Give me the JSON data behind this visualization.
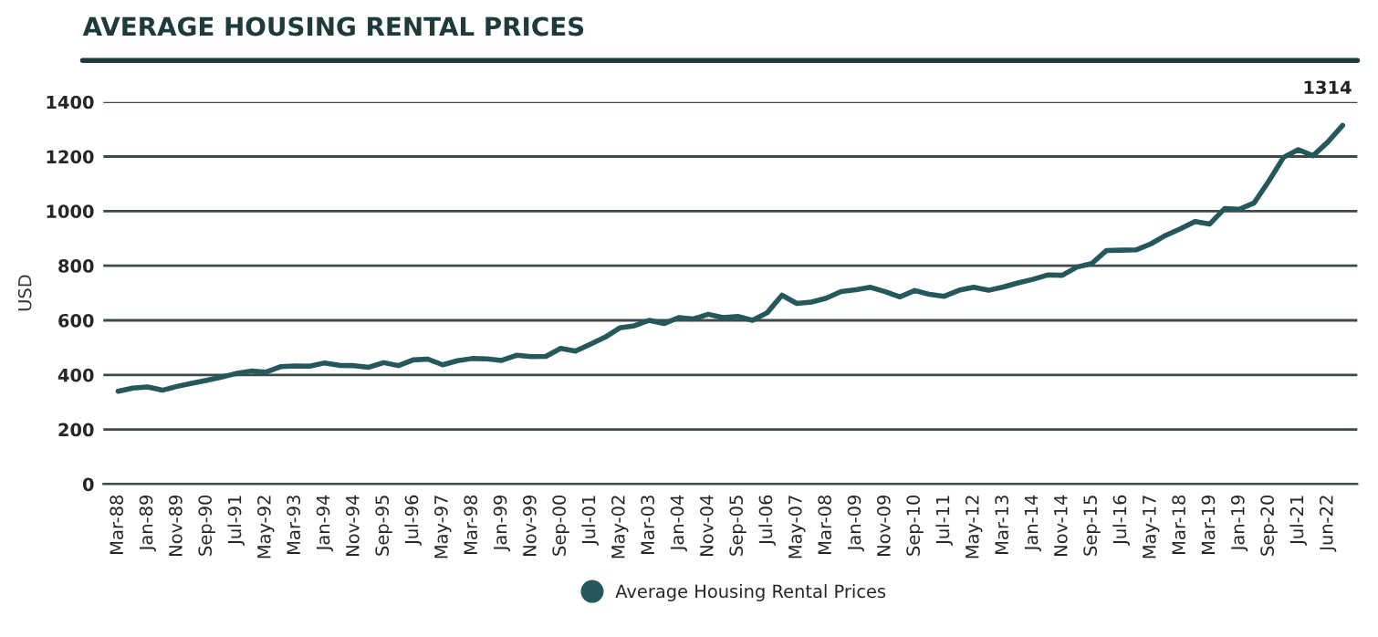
{
  "chart_data": {
    "type": "line",
    "title": "AVERAGE HOUSING RENTAL PRICES",
    "ylabel": "USD",
    "categories": [
      "Mar-88",
      null,
      "Jan-89",
      null,
      "Nov-89",
      null,
      "Sep-90",
      null,
      "Jul-91",
      null,
      "May-92",
      null,
      "Mar-93",
      null,
      "Jan-94",
      null,
      "Nov-94",
      null,
      "Sep-95",
      null,
      "Jul-96",
      null,
      "May-97",
      null,
      "Mar-98",
      null,
      "Jan-99",
      null,
      "Nov-99",
      null,
      "Sep-00",
      null,
      "Jul-01",
      null,
      "May-02",
      null,
      "Mar-03",
      null,
      "Jan-04",
      null,
      "Nov-04",
      null,
      "Sep-05",
      null,
      "Jul-06",
      null,
      "May-07",
      null,
      "Mar-08",
      null,
      "Jan-09",
      null,
      "Nov-09",
      null,
      "Sep-10",
      null,
      "Jul-11",
      null,
      "May-12",
      null,
      "Mar-13",
      null,
      "Jan-14",
      null,
      "Nov-14",
      null,
      "Sep-15",
      null,
      "Jul-16",
      null,
      "May-17",
      null,
      "Mar-18",
      null,
      "Mar-19",
      null,
      "Jan-19",
      null,
      "Sep-20",
      null,
      "Jul-21",
      null,
      "Jun-22",
      null
    ],
    "series": [
      {
        "name": "Average Housing Rental Prices",
        "color": "#24585a",
        "values": [
          340,
          352,
          356,
          344,
          358,
          369,
          380,
          392,
          405,
          414,
          410,
          430,
          433,
          432,
          444,
          435,
          434,
          428,
          445,
          434,
          455,
          458,
          437,
          452,
          460,
          459,
          453,
          472,
          467,
          468,
          497,
          487,
          512,
          538,
          572,
          580,
          600,
          588,
          610,
          605,
          622,
          610,
          614,
          600,
          628,
          692,
          662,
          667,
          681,
          705,
          712,
          721,
          705,
          686,
          709,
          695,
          688,
          710,
          721,
          710,
          722,
          737,
          750,
          766,
          765,
          795,
          808,
          856,
          857,
          858,
          880,
          911,
          935,
          962,
          953,
          1009,
          1007,
          1030,
          1110,
          1197,
          1225,
          1203,
          1253,
          1314
        ],
        "value_labels": [
          null,
          null,
          null,
          null,
          null,
          null,
          null,
          null,
          null,
          null,
          null,
          null,
          null,
          null,
          null,
          null,
          null,
          null,
          null,
          null,
          null,
          null,
          null,
          null,
          null,
          null,
          null,
          null,
          null,
          null,
          null,
          null,
          null,
          null,
          null,
          null,
          null,
          null,
          null,
          null,
          null,
          null,
          null,
          null,
          null,
          null,
          null,
          null,
          null,
          null,
          null,
          null,
          null,
          null,
          null,
          null,
          null,
          null,
          null,
          null,
          null,
          null,
          null,
          null,
          null,
          null,
          null,
          null,
          null,
          null,
          null,
          null,
          null,
          null,
          null,
          null,
          null,
          null,
          null,
          null,
          null,
          null,
          null,
          "1314"
        ]
      }
    ],
    "ylim": [
      0,
      1400
    ],
    "yticks": [
      0,
      200,
      400,
      600,
      800,
      1000,
      1200,
      1400
    ],
    "grid": "y",
    "legend": "bottom",
    "line_style": "solid"
  }
}
